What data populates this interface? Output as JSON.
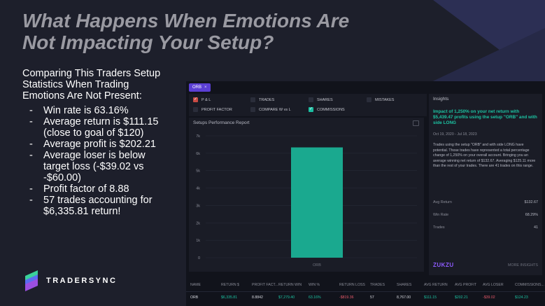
{
  "slide": {
    "title": "What Happens When Emotions Are Not Impacting Your Setup?",
    "intro": "Comparing This Traders Setup Statistics When Trading Emotions Are Not Present:",
    "bullets": [
      "Win rate is 63.16%",
      "Average return is $111.15 (close to goal of $120)",
      "Average profit is $202.21",
      "Average loser is below target loss (-$39.02 vs -$60.00)",
      "Profit factor of 8.88",
      "57 trades accounting for $6,335.81 return!"
    ],
    "logo_text": "TRADERSYNC"
  },
  "app": {
    "chip": {
      "label": "ORB",
      "close": "×"
    },
    "filters": [
      {
        "label": "P & L",
        "checked": true,
        "color": "red"
      },
      {
        "label": "TRADES",
        "checked": false
      },
      {
        "label": "SHARES",
        "checked": false
      },
      {
        "label": "MISTAKES",
        "checked": false
      },
      {
        "label": "PROFIT FACTOR",
        "checked": false
      },
      {
        "label": "COMPARE W vs L",
        "checked": false
      },
      {
        "label": "COMMISSIONS",
        "checked": true,
        "color": "teal"
      }
    ],
    "report_title": "Setups Performance Report",
    "insights": {
      "title": "Insights",
      "headline": "Impact of 1,250% on your net return with $5,439.47 profits using the setup \"ORB\" and with side LONG",
      "date": "Oct 19, 2020 - Jul 18, 2023",
      "body": "Trades using the setup \"ORB\" and with side LONG have potential. Those trades have represented a total percentage change of 1,250% on your overall account. Bringing you an average winning net return of $132.67. Averaging $125.11 more than the rest of your trades. There are 41 trades on this range.",
      "stats": [
        {
          "label": "Avg Return",
          "value": "$132.67"
        },
        {
          "label": "Win Rate",
          "value": "68.29%"
        },
        {
          "label": "Trades",
          "value": "41"
        }
      ],
      "brand": "ZUKZU",
      "more": "MORE INSIGHTS"
    },
    "table": {
      "headers": [
        "NAME",
        "RETURN $",
        "PROFIT FACT...",
        "RETURN WIN",
        "WIN %",
        "RETURN LOSS",
        "TRADES",
        "SHARES",
        "AVG RETURN",
        "AVG PROFIT",
        "AVG LOSER",
        "COMMISSIONS..."
      ],
      "row": [
        "ORB",
        "$6,335.81",
        "8.8842",
        "$7,279.40",
        "63.16%",
        "-$819.36",
        "57",
        "8,767.00",
        "$111.15",
        "$202.21",
        "-$39.02",
        "$124.23"
      ]
    }
  },
  "colors": {
    "background": "#1d1f2b",
    "accent": "#1cc3a2",
    "negative": "#e85a6a",
    "chip": "#5b3fd4",
    "bar": "#1aa98f"
  },
  "chart_data": {
    "type": "bar",
    "title": "Setups Performance Report",
    "categories": [
      "ORB"
    ],
    "values": [
      6335.81
    ],
    "ylim": [
      0,
      7000
    ],
    "yticks": [
      "0",
      "1k",
      "2k",
      "3k",
      "4k",
      "5k",
      "6k",
      "7k"
    ],
    "grid": true
  }
}
